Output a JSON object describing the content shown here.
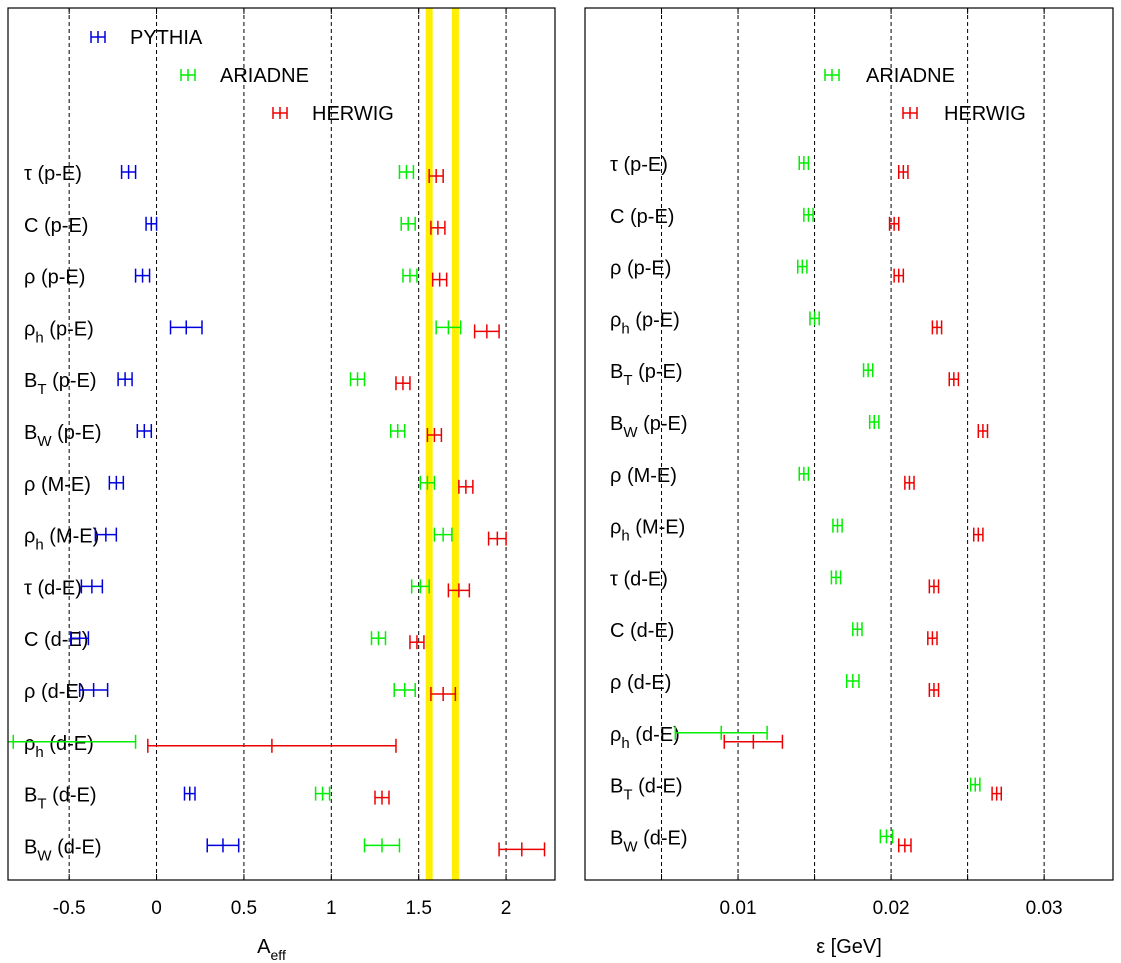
{
  "colors": {
    "PYTHIA": "#0000dd",
    "ARIADNE": "#00ee00",
    "HERWIG": "#ee0000",
    "band": "#ffee00"
  },
  "chart_data": [
    {
      "type": "scatter",
      "subtype": "horizontal error bars",
      "xlabel_main": "A",
      "xlabel_sub": "eff",
      "xlim": [
        -0.85,
        2.28
      ],
      "xticks": [
        -0.5,
        0,
        0.5,
        1,
        1.5,
        2
      ],
      "xtick_labels": [
        "-0.5",
        "0",
        "0.5",
        "1",
        "1.5",
        "2"
      ],
      "grid": "vertical dashed",
      "bands": [
        1.56,
        1.71
      ],
      "rows": [
        {
          "label": "τ (p-E)",
          "base": "τ",
          "sub": "",
          "tail": " (p-E)"
        },
        {
          "label": "C (p-E)",
          "base": "C",
          "sub": "",
          "tail": " (p-E)"
        },
        {
          "label": "ρ (p-E)",
          "base": "ρ",
          "sub": "",
          "tail": " (p-E)"
        },
        {
          "label": "ρh (p-E)",
          "base": "ρ",
          "sub": "h",
          "tail": " (p-E)"
        },
        {
          "label": "BT (p-E)",
          "base": "B",
          "sub": "T",
          "tail": " (p-E)"
        },
        {
          "label": "BW (p-E)",
          "base": "B",
          "sub": "W",
          "tail": " (p-E)"
        },
        {
          "label": "ρ (M-E)",
          "base": "ρ",
          "sub": "",
          "tail": " (M-E)"
        },
        {
          "label": "ρh (M-E)",
          "base": "ρ",
          "sub": "h",
          "tail": " (M-E)"
        },
        {
          "label": "τ (d-E)",
          "base": "τ",
          "sub": "",
          "tail": " (d-E)"
        },
        {
          "label": "C (d-E)",
          "base": "C",
          "sub": "",
          "tail": " (d-E)"
        },
        {
          "label": "ρ (d-E)",
          "base": "ρ",
          "sub": "",
          "tail": " (d-E)"
        },
        {
          "label": "ρh (d-E)",
          "base": "ρ",
          "sub": "h",
          "tail": " (d-E)"
        },
        {
          "label": "BT (d-E)",
          "base": "B",
          "sub": "T",
          "tail": " (d-E)"
        },
        {
          "label": "BW (d-E)",
          "base": "B",
          "sub": "W",
          "tail": " (d-E)"
        }
      ],
      "legend": [
        "PYTHIA",
        "ARIADNE",
        "HERWIG"
      ],
      "legend_placement": "top-left, staggered",
      "series": [
        {
          "name": "PYTHIA",
          "values": [
            [
              -0.16,
              0.04
            ],
            [
              -0.03,
              0.03
            ],
            [
              -0.08,
              0.04
            ],
            [
              0.17,
              0.09
            ],
            [
              -0.18,
              0.04
            ],
            [
              -0.07,
              0.04
            ],
            [
              -0.23,
              0.04
            ],
            [
              -0.29,
              0.06
            ],
            [
              -0.37,
              0.06
            ],
            [
              -0.44,
              0.05
            ],
            [
              -0.36,
              0.08
            ],
            [
              null,
              null
            ],
            [
              0.19,
              0.03
            ],
            [
              0.38,
              0.09
            ]
          ]
        },
        {
          "name": "ARIADNE",
          "values": [
            [
              1.43,
              0.04
            ],
            [
              1.44,
              0.04
            ],
            [
              1.45,
              0.04
            ],
            [
              1.67,
              0.07
            ],
            [
              1.15,
              0.04
            ],
            [
              1.38,
              0.04
            ],
            [
              1.55,
              0.04
            ],
            [
              1.64,
              0.05
            ],
            [
              1.51,
              0.05
            ],
            [
              1.27,
              0.04
            ],
            [
              1.42,
              0.06
            ],
            [
              -0.82,
              0.7
            ],
            [
              0.95,
              0.04
            ],
            [
              1.29,
              0.1
            ]
          ]
        },
        {
          "name": "HERWIG",
          "values": [
            [
              1.6,
              0.04
            ],
            [
              1.61,
              0.04
            ],
            [
              1.62,
              0.04
            ],
            [
              1.89,
              0.07
            ],
            [
              1.41,
              0.04
            ],
            [
              1.59,
              0.04
            ],
            [
              1.77,
              0.04
            ],
            [
              1.95,
              0.05
            ],
            [
              1.73,
              0.06
            ],
            [
              1.49,
              0.04
            ],
            [
              1.64,
              0.07
            ],
            [
              0.66,
              0.71
            ],
            [
              1.29,
              0.04
            ],
            [
              2.09,
              0.13
            ]
          ]
        }
      ]
    },
    {
      "type": "scatter",
      "subtype": "horizontal error bars",
      "xlabel_main": "ε [GeV]",
      "xlabel_sub": "",
      "xlim": [
        0.0,
        0.0345
      ],
      "xticks": [
        0.005,
        0.01,
        0.015,
        0.02,
        0.025,
        0.03
      ],
      "xtick_labels": [
        "",
        "0.01",
        "",
        "0.02",
        "",
        "0.03"
      ],
      "grid": "vertical dashed",
      "bands": [],
      "rows": [
        {
          "label": "τ (p-E)",
          "base": "τ",
          "sub": "",
          "tail": " (p-E)"
        },
        {
          "label": "C (p-E)",
          "base": "C",
          "sub": "",
          "tail": " (p-E)"
        },
        {
          "label": "ρ (p-E)",
          "base": "ρ",
          "sub": "",
          "tail": " (p-E)"
        },
        {
          "label": "ρh (p-E)",
          "base": "ρ",
          "sub": "h",
          "tail": " (p-E)"
        },
        {
          "label": "BT (p-E)",
          "base": "B",
          "sub": "T",
          "tail": " (p-E)"
        },
        {
          "label": "BW (p-E)",
          "base": "B",
          "sub": "W",
          "tail": " (p-E)"
        },
        {
          "label": "ρ (M-E)",
          "base": "ρ",
          "sub": "",
          "tail": " (M-E)"
        },
        {
          "label": "ρh (M-E)",
          "base": "ρ",
          "sub": "h",
          "tail": " (M-E)"
        },
        {
          "label": "τ (d-E)",
          "base": "τ",
          "sub": "",
          "tail": " (d-E)"
        },
        {
          "label": "C (d-E)",
          "base": "C",
          "sub": "",
          "tail": " (d-E)"
        },
        {
          "label": "ρ (d-E)",
          "base": "ρ",
          "sub": "",
          "tail": " (d-E)"
        },
        {
          "label": "ρh (d-E)",
          "base": "ρ",
          "sub": "h",
          "tail": " (d-E)"
        },
        {
          "label": "BT (d-E)",
          "base": "B",
          "sub": "T",
          "tail": " (d-E)"
        },
        {
          "label": "BW (d-E)",
          "base": "B",
          "sub": "W",
          "tail": " (d-E)"
        }
      ],
      "legend": [
        "ARIADNE",
        "HERWIG"
      ],
      "legend_placement": "top-right, staggered",
      "series": [
        {
          "name": "ARIADNE",
          "values": [
            [
              0.0143,
              0.0003
            ],
            [
              0.0146,
              0.0003
            ],
            [
              0.0142,
              0.0003
            ],
            [
              0.015,
              0.0003
            ],
            [
              0.0185,
              0.0003
            ],
            [
              0.0189,
              0.0003
            ],
            [
              0.0143,
              0.0003
            ],
            [
              0.0165,
              0.0003
            ],
            [
              0.0164,
              0.0003
            ],
            [
              0.0178,
              0.0003
            ],
            [
              0.0175,
              0.0004
            ],
            [
              0.0089,
              0.003
            ],
            [
              0.0255,
              0.0003
            ],
            [
              0.0197,
              0.0004
            ]
          ]
        },
        {
          "name": "HERWIG",
          "values": [
            [
              0.0208,
              0.0003
            ],
            [
              0.0202,
              0.0003
            ],
            [
              0.0205,
              0.0003
            ],
            [
              0.023,
              0.0003
            ],
            [
              0.0241,
              0.0003
            ],
            [
              0.026,
              0.0003
            ],
            [
              0.0212,
              0.0003
            ],
            [
              0.0257,
              0.0003
            ],
            [
              0.0228,
              0.0003
            ],
            [
              0.0227,
              0.0003
            ],
            [
              0.0228,
              0.0003
            ],
            [
              0.011,
              0.0019
            ],
            [
              0.0269,
              0.0003
            ],
            [
              0.0209,
              0.0004
            ]
          ]
        }
      ]
    }
  ]
}
